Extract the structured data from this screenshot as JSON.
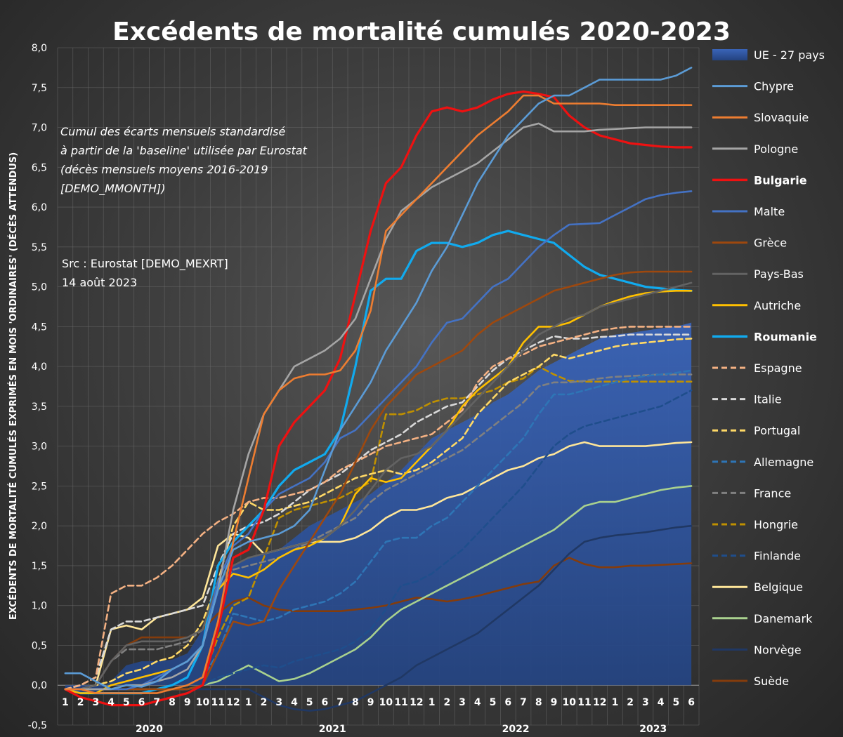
{
  "chart_data": {
    "type": "line",
    "title": "Excédents de mortalité cumulés 2020-2023",
    "ylabel": "EXCÉDENTS DE MORTALITÉ CUMULÉS EXPRIMÉS EN MOIS 'ORDINAIRES' (DÉCÈS ATTENDUS)",
    "ylim": [
      -0.5,
      8.0
    ],
    "yticks": [
      "-0,5",
      "0,0",
      "0,5",
      "1,0",
      "1,5",
      "2,0",
      "2,5",
      "3,0",
      "3,5",
      "4,0",
      "4,5",
      "5,0",
      "5,5",
      "6,0",
      "6,5",
      "7,0",
      "7,5",
      "8,0"
    ],
    "x_month_labels": [
      "1",
      "2",
      "3",
      "4",
      "5",
      "6",
      "7",
      "8",
      "9",
      "10",
      "11",
      "12",
      "1",
      "2",
      "3",
      "4",
      "5",
      "6",
      "7",
      "8",
      "9",
      "10",
      "11",
      "12",
      "1",
      "2",
      "3",
      "4",
      "5",
      "6",
      "7",
      "8",
      "9",
      "10",
      "11",
      "12",
      "1",
      "2",
      "3",
      "4",
      "5",
      "6"
    ],
    "years": [
      {
        "label": "2020",
        "center": 5.5
      },
      {
        "label": "2021",
        "center": 17.5
      },
      {
        "label": "2022",
        "center": 29.5
      },
      {
        "label": "2023",
        "center": 38.5
      }
    ],
    "annotation": [
      "Cumul des écarts mensuels standardisé",
      "à partir de la 'baseline' utilisée par Eurostat",
      "(décès mensuels moyens 2016-2019",
      "[DEMO_MMONTH])"
    ],
    "source": [
      "Src : Eurostat [DEMO_MEXRT]",
      "14 août 2023"
    ],
    "grid": true,
    "legend_position": "right",
    "area": {
      "name": "UE - 27 pays",
      "color": "#2e4f9c",
      "values": [
        -0.05,
        -0.1,
        -0.1,
        0.05,
        0.25,
        0.3,
        0.3,
        0.32,
        0.4,
        0.7,
        1.3,
        1.5,
        1.6,
        1.65,
        1.7,
        1.85,
        2.0,
        2.1,
        2.2,
        2.3,
        2.4,
        2.55,
        2.7,
        2.9,
        3.1,
        3.2,
        3.3,
        3.4,
        3.55,
        3.65,
        3.8,
        3.95,
        4.05,
        4.15,
        4.25,
        4.35,
        4.4,
        4.42,
        4.45,
        4.48,
        4.5,
        4.55
      ]
    },
    "series": [
      {
        "name": "Chypre",
        "color": "#5b9bd5",
        "dash": false,
        "bold": false,
        "values": [
          0.15,
          0.15,
          0.05,
          -0.05,
          0.0,
          -0.02,
          0.05,
          0.2,
          0.3,
          0.5,
          1.2,
          1.7,
          1.8,
          1.85,
          1.9,
          2.0,
          2.2,
          2.7,
          3.2,
          3.5,
          3.8,
          4.2,
          4.5,
          4.8,
          5.2,
          5.5,
          5.9,
          6.3,
          6.6,
          6.9,
          7.1,
          7.3,
          7.4,
          7.4,
          7.5,
          7.6,
          7.6,
          7.6,
          7.6,
          7.6,
          7.65,
          7.75
        ]
      },
      {
        "name": "Slovaquie",
        "color": "#ed7d31",
        "dash": false,
        "bold": false,
        "values": [
          -0.05,
          -0.05,
          -0.1,
          -0.1,
          -0.1,
          -0.1,
          -0.1,
          -0.05,
          0.0,
          0.1,
          0.8,
          1.8,
          2.6,
          3.4,
          3.7,
          3.85,
          3.9,
          3.9,
          3.95,
          4.2,
          4.7,
          5.7,
          5.9,
          6.1,
          6.3,
          6.5,
          6.7,
          6.9,
          7.05,
          7.2,
          7.4,
          7.4,
          7.3,
          7.3,
          7.3,
          7.3,
          7.28,
          7.28,
          7.28,
          7.28,
          7.28,
          7.28
        ]
      },
      {
        "name": "Pologne",
        "color": "#a5a5a5",
        "dash": false,
        "bold": false,
        "values": [
          -0.05,
          -0.05,
          -0.05,
          -0.05,
          0.0,
          0.0,
          0.05,
          0.1,
          0.2,
          0.5,
          1.2,
          2.2,
          2.9,
          3.4,
          3.7,
          4.0,
          4.1,
          4.2,
          4.35,
          4.6,
          5.1,
          5.6,
          5.95,
          6.1,
          6.25,
          6.35,
          6.45,
          6.55,
          6.7,
          6.85,
          7.0,
          7.05,
          6.95,
          6.95,
          6.95,
          6.97,
          6.98,
          6.99,
          7.0,
          7.0,
          7.0,
          7.0
        ]
      },
      {
        "name": "Bulgarie",
        "color": "#ee1111",
        "dash": false,
        "bold": true,
        "values": [
          -0.05,
          -0.15,
          -0.2,
          -0.25,
          -0.25,
          -0.25,
          -0.2,
          -0.15,
          -0.1,
          0.0,
          0.7,
          1.6,
          1.7,
          2.2,
          3.0,
          3.3,
          3.5,
          3.7,
          4.1,
          4.9,
          5.7,
          6.3,
          6.5,
          6.9,
          7.2,
          7.25,
          7.2,
          7.25,
          7.35,
          7.42,
          7.45,
          7.42,
          7.38,
          7.15,
          7.0,
          6.9,
          6.85,
          6.8,
          6.78,
          6.76,
          6.75,
          6.75
        ]
      },
      {
        "name": "Malte",
        "color": "#4472c4",
        "dash": false,
        "bold": false,
        "values": [
          -0.05,
          -0.05,
          -0.05,
          -0.05,
          -0.05,
          0.0,
          0.1,
          0.2,
          0.3,
          0.5,
          1.3,
          1.75,
          1.9,
          2.2,
          2.4,
          2.5,
          2.6,
          2.8,
          3.1,
          3.2,
          3.4,
          3.6,
          3.8,
          4.0,
          4.3,
          4.55,
          4.6,
          4.8,
          5.0,
          5.1,
          5.3,
          5.5,
          5.65,
          5.78,
          5.79,
          5.8,
          5.9,
          6.0,
          6.1,
          6.15,
          6.18,
          6.2
        ]
      },
      {
        "name": "Grèce",
        "color": "#9e480e",
        "dash": false,
        "bold": false,
        "values": [
          -0.05,
          -0.05,
          -0.05,
          -0.05,
          -0.05,
          -0.05,
          -0.05,
          -0.05,
          -0.05,
          0.0,
          0.4,
          0.8,
          0.75,
          0.8,
          1.2,
          1.5,
          1.8,
          2.1,
          2.4,
          2.8,
          3.2,
          3.5,
          3.7,
          3.9,
          4.0,
          4.1,
          4.2,
          4.4,
          4.55,
          4.65,
          4.75,
          4.85,
          4.95,
          5.0,
          5.05,
          5.1,
          5.15,
          5.18,
          5.19,
          5.19,
          5.19,
          5.19
        ]
      },
      {
        "name": "Pays-Bas",
        "color": "#636363",
        "dash": false,
        "bold": false,
        "values": [
          -0.05,
          -0.05,
          0.0,
          0.3,
          0.5,
          0.55,
          0.55,
          0.55,
          0.6,
          0.7,
          1.3,
          1.5,
          1.6,
          1.65,
          1.7,
          1.75,
          1.8,
          1.85,
          2.0,
          2.2,
          2.45,
          2.7,
          2.85,
          2.9,
          3.0,
          3.2,
          3.4,
          3.6,
          3.8,
          4.0,
          4.2,
          4.4,
          4.5,
          4.6,
          4.65,
          4.75,
          4.8,
          4.85,
          4.9,
          4.95,
          5.0,
          5.05
        ]
      },
      {
        "name": "Autriche",
        "color": "#ffc000",
        "dash": false,
        "bold": false,
        "values": [
          -0.05,
          -0.1,
          -0.1,
          0.0,
          0.05,
          0.1,
          0.15,
          0.2,
          0.3,
          0.5,
          1.2,
          1.4,
          1.35,
          1.45,
          1.6,
          1.7,
          1.75,
          1.85,
          2.0,
          2.4,
          2.6,
          2.55,
          2.6,
          2.8,
          3.0,
          3.2,
          3.5,
          3.7,
          3.85,
          4.0,
          4.3,
          4.5,
          4.5,
          4.55,
          4.65,
          4.75,
          4.82,
          4.88,
          4.92,
          4.94,
          4.95,
          4.95
        ]
      },
      {
        "name": "Roumanie",
        "color": "#11aaee",
        "dash": false,
        "bold": true,
        "values": [
          -0.05,
          -0.1,
          -0.1,
          -0.1,
          -0.1,
          -0.1,
          -0.05,
          0.0,
          0.1,
          0.5,
          1.5,
          1.8,
          2.0,
          2.2,
          2.5,
          2.7,
          2.8,
          2.9,
          3.2,
          4.0,
          4.95,
          5.1,
          5.1,
          5.45,
          5.55,
          5.55,
          5.5,
          5.55,
          5.65,
          5.7,
          5.65,
          5.6,
          5.55,
          5.4,
          5.25,
          5.15,
          5.1,
          5.05,
          5.0,
          4.98,
          4.96,
          4.95
        ]
      },
      {
        "name": "Espagne",
        "color": "#f4b183",
        "dash": true,
        "bold": false,
        "values": [
          -0.05,
          0.0,
          0.1,
          1.15,
          1.25,
          1.25,
          1.35,
          1.5,
          1.7,
          1.9,
          2.05,
          2.15,
          2.3,
          2.35,
          2.35,
          2.4,
          2.45,
          2.55,
          2.7,
          2.8,
          2.9,
          3.0,
          3.05,
          3.1,
          3.15,
          3.3,
          3.45,
          3.8,
          4.0,
          4.1,
          4.15,
          4.25,
          4.3,
          4.35,
          4.4,
          4.45,
          4.48,
          4.5,
          4.5,
          4.5,
          4.5,
          4.5
        ]
      },
      {
        "name": "Italie",
        "color": "#d9d9d9",
        "dash": true,
        "bold": false,
        "values": [
          -0.05,
          0.0,
          0.1,
          0.7,
          0.8,
          0.8,
          0.85,
          0.9,
          0.95,
          1.0,
          1.5,
          1.9,
          2.0,
          2.05,
          2.15,
          2.3,
          2.45,
          2.55,
          2.65,
          2.8,
          2.95,
          3.05,
          3.15,
          3.3,
          3.4,
          3.5,
          3.55,
          3.75,
          3.95,
          4.1,
          4.2,
          4.3,
          4.38,
          4.35,
          4.35,
          4.37,
          4.38,
          4.4,
          4.4,
          4.4,
          4.4,
          4.4
        ]
      },
      {
        "name": "Portugal",
        "color": "#ffd966",
        "dash": true,
        "bold": false,
        "values": [
          -0.05,
          -0.05,
          0.0,
          0.05,
          0.15,
          0.2,
          0.3,
          0.35,
          0.5,
          0.8,
          1.3,
          2.0,
          2.3,
          2.2,
          2.2,
          2.25,
          2.3,
          2.4,
          2.5,
          2.6,
          2.65,
          2.7,
          2.65,
          2.7,
          2.8,
          2.95,
          3.1,
          3.4,
          3.6,
          3.8,
          3.9,
          4.0,
          4.15,
          4.1,
          4.15,
          4.2,
          4.25,
          4.28,
          4.3,
          4.32,
          4.34,
          4.35
        ]
      },
      {
        "name": "Allemagne",
        "color": "#2e75b6",
        "dash": true,
        "bold": false,
        "values": [
          -0.05,
          -0.05,
          -0.05,
          -0.05,
          -0.05,
          -0.05,
          -0.05,
          -0.05,
          0.0,
          0.1,
          0.4,
          0.9,
          0.85,
          0.8,
          0.85,
          0.95,
          1.0,
          1.05,
          1.15,
          1.3,
          1.55,
          1.8,
          1.85,
          1.85,
          2.0,
          2.1,
          2.3,
          2.5,
          2.7,
          2.9,
          3.1,
          3.4,
          3.65,
          3.65,
          3.7,
          3.75,
          3.8,
          3.85,
          3.88,
          3.9,
          3.92,
          3.95
        ]
      },
      {
        "name": "France",
        "color": "#808080",
        "dash": true,
        "bold": false,
        "values": [
          -0.05,
          -0.05,
          0.0,
          0.3,
          0.45,
          0.45,
          0.45,
          0.5,
          0.55,
          0.7,
          1.2,
          1.45,
          1.5,
          1.55,
          1.6,
          1.7,
          1.8,
          1.9,
          2.0,
          2.1,
          2.3,
          2.45,
          2.55,
          2.65,
          2.75,
          2.85,
          2.95,
          3.1,
          3.25,
          3.4,
          3.55,
          3.75,
          3.8,
          3.8,
          3.82,
          3.85,
          3.87,
          3.88,
          3.89,
          3.9,
          3.9,
          3.9
        ]
      },
      {
        "name": "Hongrie",
        "color": "#bf9000",
        "dash": true,
        "bold": false,
        "values": [
          -0.05,
          -0.05,
          -0.05,
          -0.05,
          -0.05,
          -0.05,
          -0.05,
          -0.05,
          0.0,
          0.1,
          0.6,
          1.0,
          1.1,
          1.6,
          2.1,
          2.2,
          2.25,
          2.3,
          2.35,
          2.45,
          2.55,
          3.4,
          3.4,
          3.45,
          3.55,
          3.6,
          3.6,
          3.65,
          3.7,
          3.8,
          3.85,
          4.0,
          3.9,
          3.82,
          3.81,
          3.81,
          3.81,
          3.81,
          3.81,
          3.81,
          3.81,
          3.81
        ]
      },
      {
        "name": "Finlande",
        "color": "#1f4e8c",
        "dash": true,
        "bold": false,
        "values": [
          -0.05,
          -0.05,
          -0.05,
          -0.05,
          -0.05,
          -0.05,
          -0.05,
          -0.05,
          -0.05,
          0.0,
          0.1,
          0.15,
          0.2,
          0.25,
          0.22,
          0.3,
          0.35,
          0.4,
          0.45,
          0.55,
          0.7,
          0.95,
          1.25,
          1.3,
          1.4,
          1.55,
          1.7,
          1.9,
          2.1,
          2.3,
          2.5,
          2.75,
          3.0,
          3.15,
          3.25,
          3.3,
          3.35,
          3.4,
          3.45,
          3.5,
          3.6,
          3.7
        ]
      },
      {
        "name": "Belgique",
        "color": "#ffe699",
        "dash": false,
        "bold": false,
        "values": [
          -0.05,
          -0.05,
          0.0,
          0.7,
          0.75,
          0.7,
          0.85,
          0.9,
          0.95,
          1.1,
          1.75,
          1.9,
          1.85,
          1.65,
          1.7,
          1.75,
          1.8,
          1.8,
          1.8,
          1.85,
          1.95,
          2.1,
          2.2,
          2.2,
          2.25,
          2.35,
          2.4,
          2.5,
          2.6,
          2.7,
          2.75,
          2.85,
          2.9,
          3.0,
          3.05,
          3.0,
          3.0,
          3.0,
          3.0,
          3.02,
          3.04,
          3.05
        ]
      },
      {
        "name": "Danemark",
        "color": "#a9d18e",
        "dash": false,
        "bold": false,
        "values": [
          -0.05,
          -0.05,
          -0.05,
          -0.05,
          -0.05,
          -0.05,
          -0.05,
          -0.05,
          -0.05,
          0.0,
          0.05,
          0.15,
          0.25,
          0.15,
          0.05,
          0.08,
          0.15,
          0.25,
          0.35,
          0.45,
          0.6,
          0.8,
          0.95,
          1.05,
          1.15,
          1.25,
          1.35,
          1.45,
          1.55,
          1.65,
          1.75,
          1.85,
          1.95,
          2.1,
          2.25,
          2.3,
          2.3,
          2.35,
          2.4,
          2.45,
          2.48,
          2.5
        ]
      },
      {
        "name": "Norvège",
        "color": "#203864",
        "dash": false,
        "bold": false,
        "values": [
          -0.05,
          -0.05,
          -0.05,
          -0.05,
          -0.05,
          -0.05,
          -0.05,
          -0.05,
          -0.05,
          -0.05,
          -0.05,
          -0.05,
          -0.05,
          -0.15,
          -0.25,
          -0.3,
          -0.32,
          -0.3,
          -0.25,
          -0.2,
          -0.1,
          0.0,
          0.1,
          0.25,
          0.35,
          0.45,
          0.55,
          0.65,
          0.8,
          0.95,
          1.1,
          1.25,
          1.45,
          1.65,
          1.8,
          1.85,
          1.88,
          1.9,
          1.92,
          1.95,
          1.98,
          2.0
        ]
      },
      {
        "name": "Suède",
        "color": "#843c0c",
        "dash": false,
        "bold": false,
        "values": [
          -0.05,
          -0.05,
          0.0,
          0.3,
          0.5,
          0.6,
          0.6,
          0.6,
          0.6,
          0.7,
          0.9,
          1.05,
          1.1,
          1.0,
          0.95,
          0.93,
          0.93,
          0.93,
          0.93,
          0.95,
          0.97,
          1.0,
          1.05,
          1.1,
          1.08,
          1.05,
          1.08,
          1.12,
          1.17,
          1.22,
          1.27,
          1.3,
          1.5,
          1.6,
          1.52,
          1.48,
          1.48,
          1.5,
          1.5,
          1.51,
          1.52,
          1.53
        ]
      }
    ]
  }
}
